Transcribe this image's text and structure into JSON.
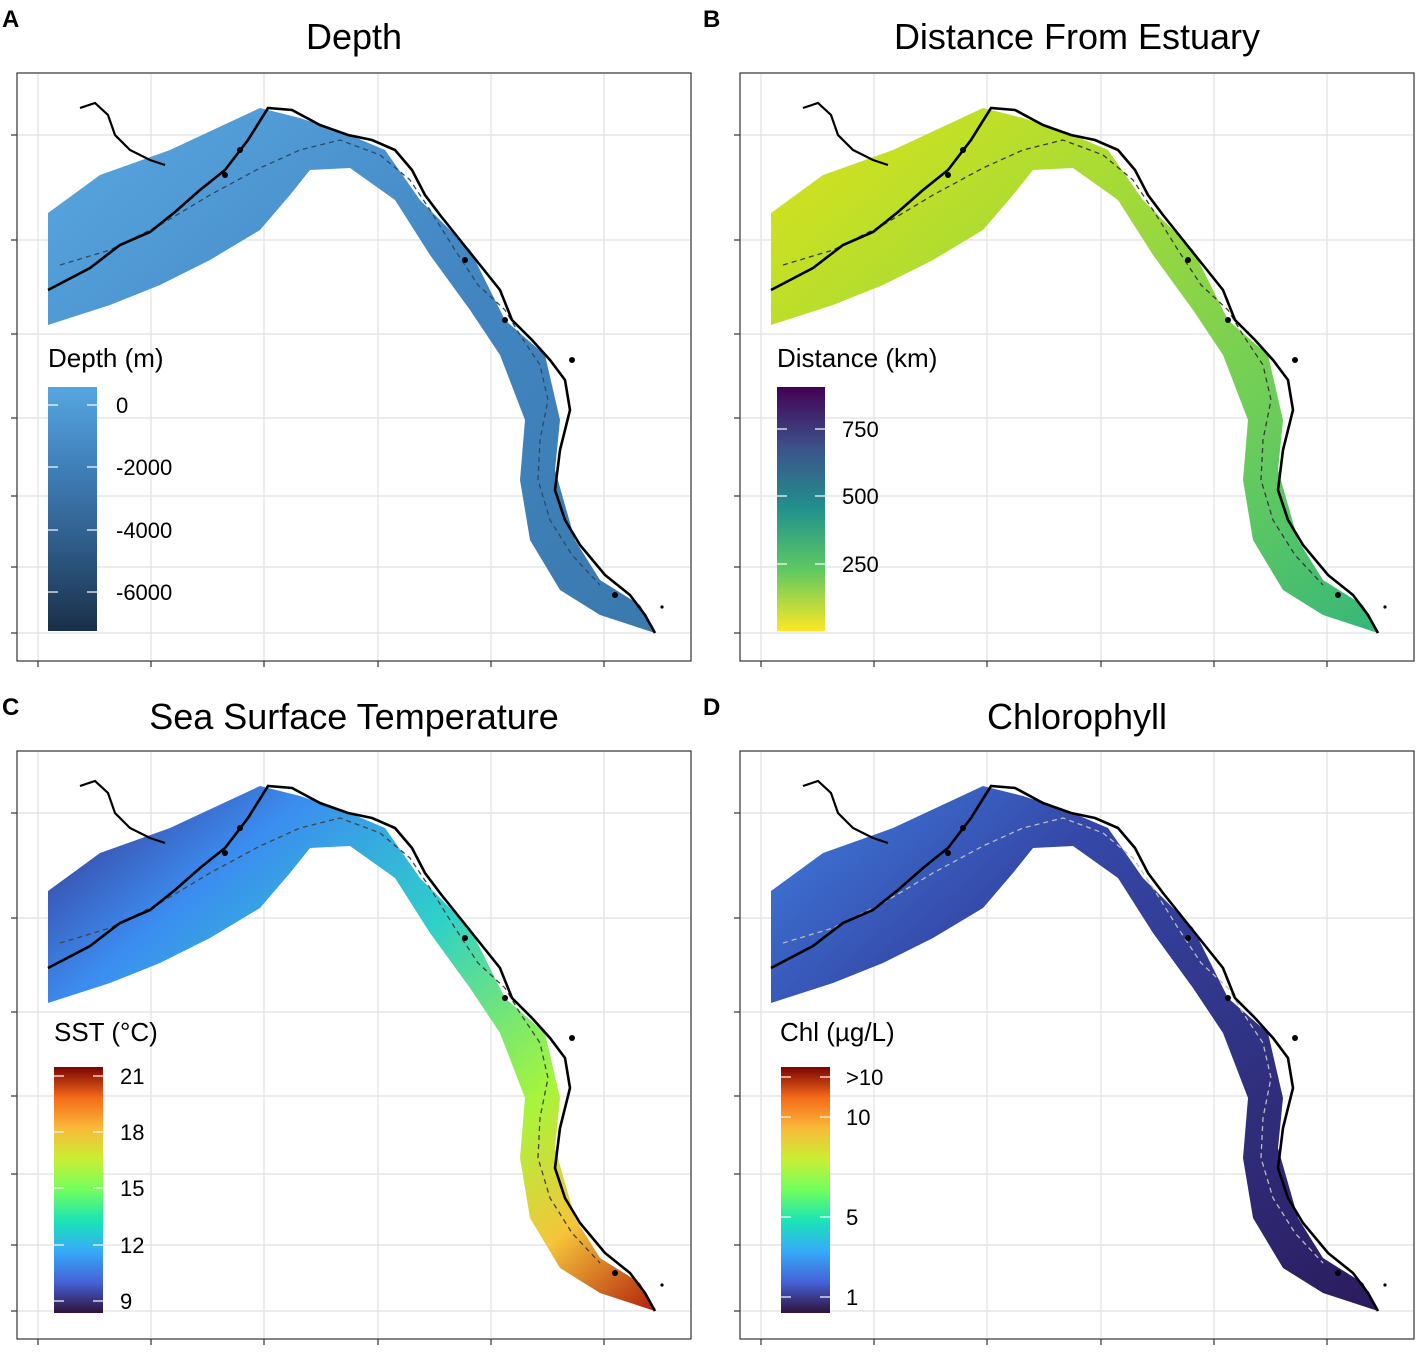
{
  "panels": [
    {
      "letter": "A",
      "title": "Depth",
      "legend_title": "Depth (m)",
      "legend_labels": [
        "0",
        "-2000",
        "-4000",
        "-6000"
      ],
      "gradient": [
        "#1a2f48",
        "#2e5a85",
        "#3f7fb8",
        "#56a6e2"
      ]
    },
    {
      "letter": "B",
      "title": "Distance From Estuary",
      "legend_title": "Distance (km)",
      "legend_labels": [
        "750",
        "500",
        "250"
      ],
      "gradient": [
        "#fde725",
        "#5ec962",
        "#21918c",
        "#3b528b",
        "#440154"
      ]
    },
    {
      "letter": "C",
      "title": "Sea Surface Temperature",
      "legend_title": "SST (°C)",
      "legend_labels": [
        "21",
        "18",
        "15",
        "12",
        "9"
      ],
      "gradient": [
        "#30123b",
        "#4662d7",
        "#36aaf9",
        "#1ae4b6",
        "#72fe5e",
        "#c8ef34",
        "#faba39",
        "#f66b19",
        "#7a0403"
      ]
    },
    {
      "letter": "D",
      "title": "Chlorophyll",
      "legend_title": "Chl (µg/L)",
      "legend_labels": [
        ">10",
        "10",
        "5",
        "1"
      ],
      "gradient": [
        "#30123b",
        "#4662d7",
        "#36aaf9",
        "#1ae4b6",
        "#72fe5e",
        "#c8ef34",
        "#faba39",
        "#f66b19",
        "#7a0403"
      ]
    }
  ]
}
